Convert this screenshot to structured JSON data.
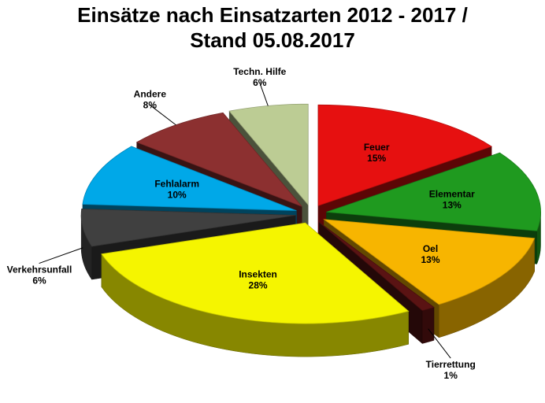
{
  "chart_data": {
    "type": "pie",
    "title_line1": "Einsätze nach Einsatzarten 2012 - 2017 /",
    "title_line2": "Stand 05.08.2017",
    "slices": [
      {
        "label": "Feuer",
        "value": 15,
        "value_label": "15%",
        "color": "#e61010"
      },
      {
        "label": "Elementar",
        "value": 13,
        "value_label": "13%",
        "color": "#1f9a1f"
      },
      {
        "label": "Oel",
        "value": 13,
        "value_label": "13%",
        "color": "#f7b500"
      },
      {
        "label": "Tierrettung",
        "value": 1,
        "value_label": "1%",
        "color": "#5a1313"
      },
      {
        "label": "Insekten",
        "value": 28,
        "value_label": "28%",
        "color": "#f5f500"
      },
      {
        "label": "Verkehrsunfall",
        "value": 6,
        "value_label": "6%",
        "color": "#404040"
      },
      {
        "label": "Fehlalarm",
        "value": 10,
        "value_label": "10%",
        "color": "#00a8e8"
      },
      {
        "label": "Andere",
        "value": 8,
        "value_label": "8%",
        "color": "#8c3030"
      },
      {
        "label": "Techn. Hilfe",
        "value": 6,
        "value_label": "6%",
        "color": "#bccc94"
      }
    ],
    "exploded": true,
    "three_d": true
  }
}
